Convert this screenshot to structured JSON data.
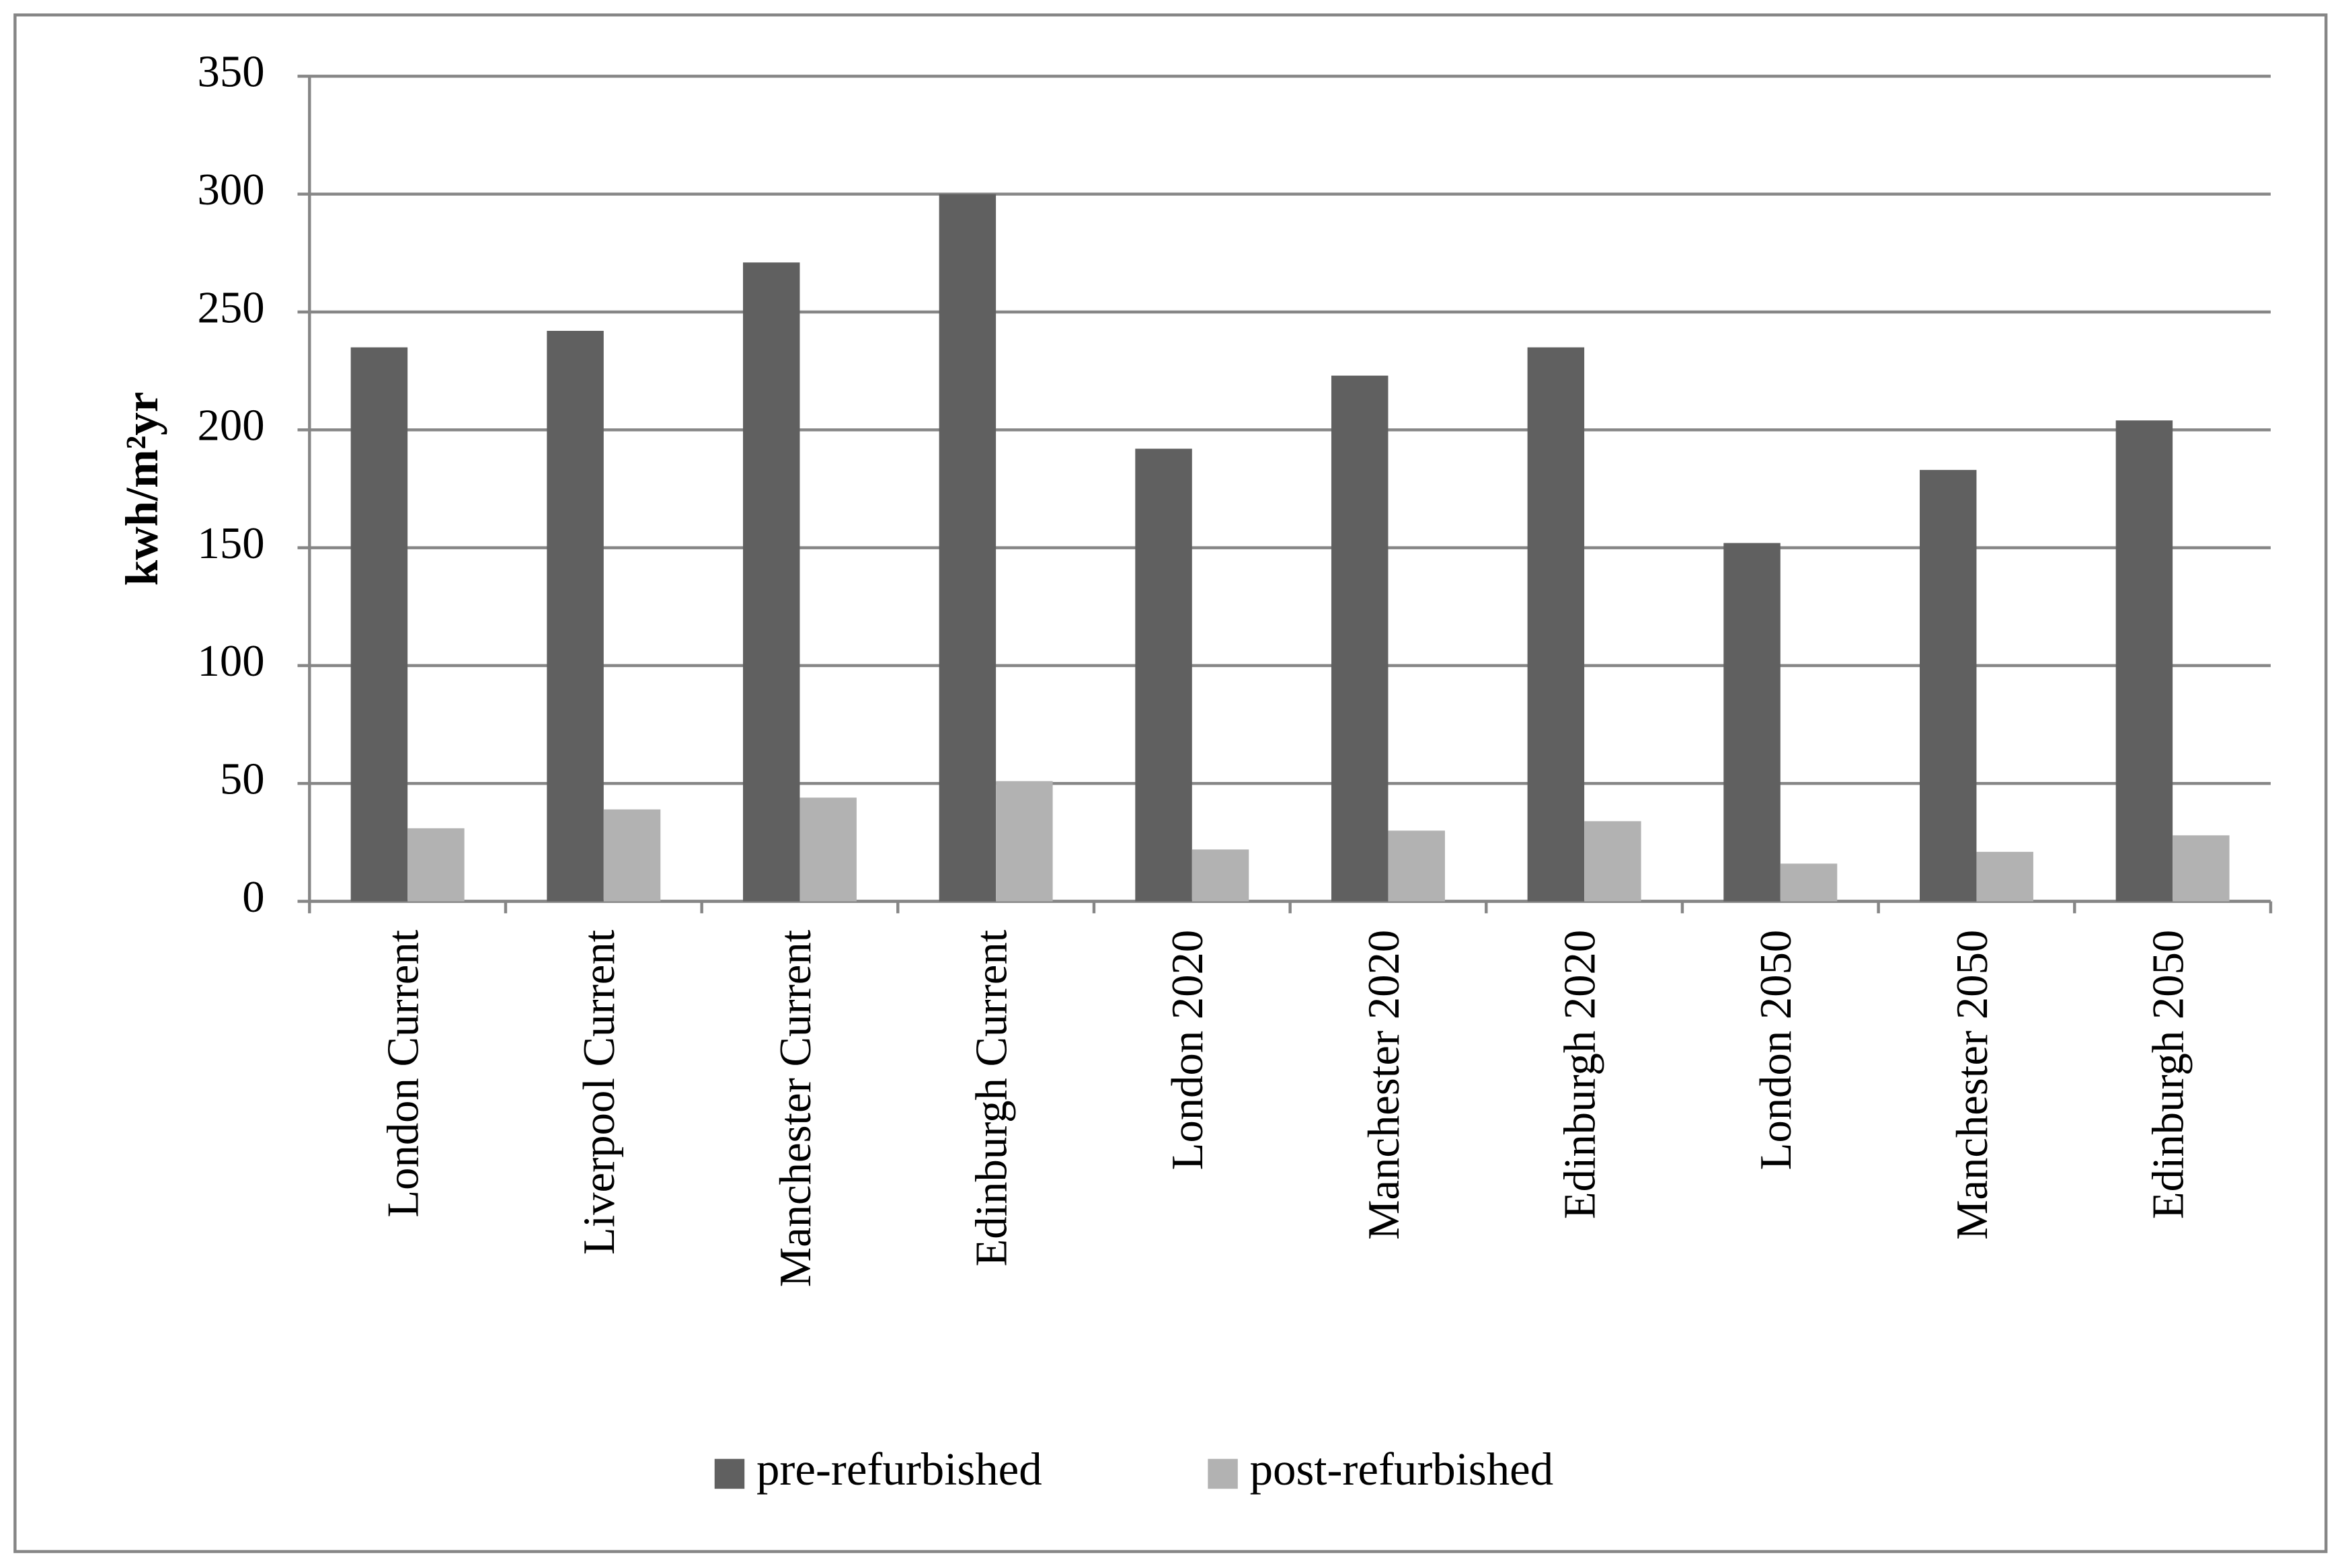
{
  "chart_data": {
    "type": "bar",
    "y_label": "kwh/m²yr",
    "categories": [
      "London Current",
      "Liverpool Current",
      "Manchester Current",
      "Edinburgh Current",
      "London 2020",
      "Manchester 2020",
      "Edinburgh 2020",
      "London 2050",
      "Manchester 2050",
      "Edinburgh 2050"
    ],
    "series": [
      {
        "name": "pre-refurbished",
        "color": "#606060",
        "values": [
          235,
          242,
          271,
          300,
          192,
          223,
          235,
          152,
          183,
          204
        ]
      },
      {
        "name": "post-refurbished",
        "color": "#b2b2b2",
        "values": [
          31,
          39,
          44,
          51,
          22,
          30,
          34,
          16,
          21,
          28
        ]
      }
    ],
    "ylim": [
      0,
      350
    ],
    "yticks": [
      0,
      50,
      100,
      150,
      200,
      250,
      300,
      350
    ],
    "grid": true,
    "legend": "bottom"
  }
}
